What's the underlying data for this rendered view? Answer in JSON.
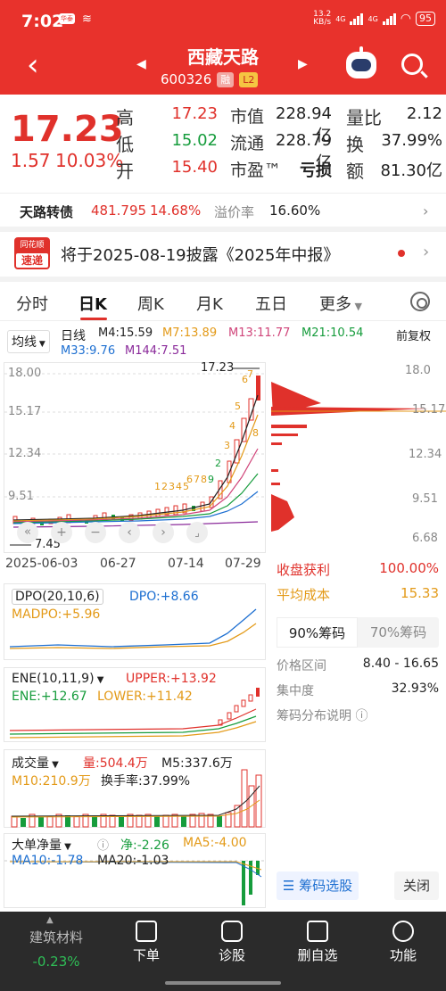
{
  "status_bar": {
    "time": "7:02",
    "app_badge": "华泰",
    "net_speed_top": "13.2",
    "net_speed_bottom": "KB/s",
    "net1": "4G",
    "net2": "4G",
    "battery": "95"
  },
  "header": {
    "stock_name": "西藏天路",
    "stock_code": "600326",
    "tag_rong": "融",
    "tag_l2": "L2"
  },
  "quote": {
    "price": "17.23",
    "change_abs": "1.57",
    "change_pct": "10.03%",
    "high_label": "高",
    "high": "17.23",
    "low_label": "低",
    "low": "15.02",
    "open_label": "开",
    "open": "15.40",
    "mktcap_label": "市值",
    "mktcap": "228.94亿",
    "float_label": "流通",
    "float": "228.79亿",
    "pe_label": "市盈™",
    "pe": "亏损",
    "vol_ratio_label": "量比",
    "vol_ratio": "2.12",
    "turnover_label": "换",
    "turnover": "37.99%",
    "amount_label": "额",
    "amount": "81.30亿"
  },
  "convertible": {
    "name": "天路转债",
    "price": "481.795",
    "pct": "14.68%",
    "premium_label": "溢价率",
    "premium": "16.60%"
  },
  "news": {
    "logo_top": "同花顺",
    "logo_bottom": "速递",
    "text": "将于2025-08-19披露《2025年中报》"
  },
  "tabs": [
    "分时",
    "日K",
    "周K",
    "月K",
    "五日",
    "更多"
  ],
  "ma": {
    "dropdown": "均线",
    "period": "日线",
    "m4": "M4:15.59",
    "m7": "M7:13.89",
    "m13": "M13:11.77",
    "m21": "M21:10.54",
    "adjust": "前复权",
    "m33": "M33:9.76",
    "m144": "M144:7.51"
  },
  "kline": {
    "y_labels": [
      "18.00",
      "15.17",
      "12.34",
      "9.51"
    ],
    "max_label": "17.23",
    "min_label": "7.45",
    "dates": [
      "2025-06-03",
      "06-27",
      "07-14",
      "07-29"
    ],
    "buy_signals": [
      "1",
      "2",
      "3",
      "4",
      "5",
      "6",
      "7",
      "8",
      "9"
    ],
    "sell_signals": [
      "2",
      "3",
      "4",
      "5",
      "6",
      "7",
      "8"
    ]
  },
  "chip_axis": [
    "18.0",
    "15.17",
    "12.34",
    "9.51",
    "6.68"
  ],
  "dpo": {
    "label": "DPO(20,10,6)",
    "dpo": "DPO:+8.66",
    "madpo": "MADPO:+5.96"
  },
  "ene": {
    "label": "ENE(10,11,9)",
    "upper": "UPPER:+13.92",
    "ene": "ENE:+12.67",
    "lower": "LOWER:+11.42"
  },
  "volume": {
    "label": "成交量",
    "vol": "量:504.4万",
    "m5": "M5:337.6万",
    "m10": "M10:210.9万",
    "turnover": "换手率:37.99%"
  },
  "bigorder": {
    "label": "大单净量",
    "net": "净:-2.26",
    "ma5": "MA5:-4.00",
    "ma10": "MA10:-1.78",
    "ma20": "MA20:-1.03"
  },
  "chips": {
    "profit_label": "收盘获利",
    "profit": "100.00%",
    "cost_label": "平均成本",
    "cost": "15.33",
    "tab90": "90%筹码",
    "tab70": "70%筹码",
    "range_label": "价格区间",
    "range": "8.40 - 16.65",
    "conc_label": "集中度",
    "conc": "32.93%",
    "explain": "筹码分布说明",
    "select_btn": "筹码选股",
    "close_btn": "关闭"
  },
  "bottom": {
    "sector_name": "建筑材料",
    "sector_pct": "-0.23%",
    "items": [
      "下单",
      "诊股",
      "删自选",
      "功能"
    ]
  },
  "colors": {
    "brand_red": "#e8322c",
    "up_red": "#e0312b",
    "down_green": "#169c3c",
    "bar_dark": "#2b2b2b"
  }
}
